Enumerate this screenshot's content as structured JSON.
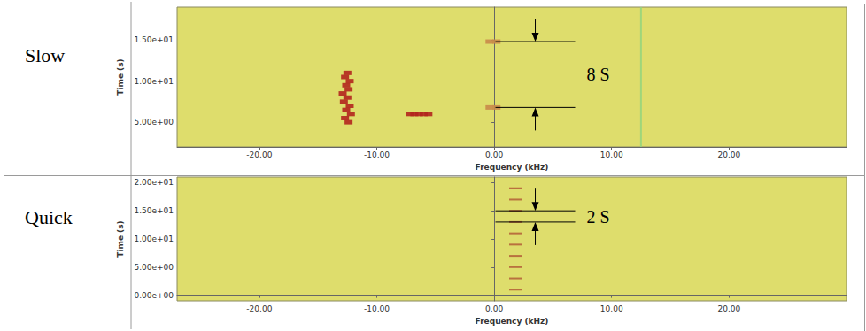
{
  "chart_data": [
    {
      "type": "scatter",
      "label": "Slow",
      "x_label": "Frequency (kHz)",
      "y_label": "Time (s)",
      "xlim": [
        -27,
        30
      ],
      "xticks": [
        {
          "value": -20,
          "label": "-20.00"
        },
        {
          "value": -10,
          "label": "-10.00"
        },
        {
          "value": 0,
          "label": "0.00"
        },
        {
          "value": 10,
          "label": "10.00"
        },
        {
          "value": 20,
          "label": "20.00"
        }
      ],
      "ylim": [
        2,
        19
      ],
      "yticks": [
        {
          "value": 5,
          "label": "5.00e+00"
        },
        {
          "value": 10,
          "label": "1.00e+01"
        },
        {
          "value": 15,
          "label": "1.50e+01"
        }
      ],
      "series": [
        {
          "color": "#b3261e",
          "marker": "rect",
          "x": [
            -12.4,
            -12.7,
            -12.2,
            -12.6,
            -12.3,
            -12.8,
            -12.5,
            -12.9,
            -12.4,
            -12.6,
            -12.3,
            -12.7,
            -12.5
          ],
          "y": [
            5.0,
            5.5,
            6.0,
            6.5,
            7.0,
            7.5,
            8.0,
            8.5,
            9.0,
            9.5,
            10.0,
            10.5,
            11.0
          ]
        },
        {
          "color": "#b3261e",
          "marker": "rect",
          "x": [
            -7.2,
            -6.8,
            -6.4,
            -6.0,
            -5.6
          ],
          "y": [
            6.0,
            6.0,
            6.0,
            6.0,
            6.0
          ]
        },
        {
          "color": "#c98a4a",
          "marker": "rect",
          "x": [
            -0.4,
            0.2,
            -0.4,
            0.2
          ],
          "y": [
            6.8,
            6.8,
            14.8,
            14.8
          ]
        },
        {
          "type": "line",
          "color": "#8fd47e",
          "x": [
            12.5,
            12.5
          ],
          "y": [
            2,
            19
          ]
        }
      ],
      "annotations": [
        {
          "text": "8 S",
          "x": 3.5,
          "y": [
            6.8,
            14.8
          ]
        }
      ]
    },
    {
      "type": "scatter",
      "label": "Quick",
      "x_label": "Frequency (kHz)",
      "y_label": "Time (s)",
      "xlim": [
        -27,
        30
      ],
      "xticks": [
        {
          "value": -20,
          "label": "-20.00"
        },
        {
          "value": -10,
          "label": "-10.00"
        },
        {
          "value": 0,
          "label": "0.00"
        },
        {
          "value": 10,
          "label": "10.00"
        },
        {
          "value": 20,
          "label": "20.00"
        }
      ],
      "ylim": [
        -1,
        21
      ],
      "yticks": [
        {
          "value": 0,
          "label": "0.00e+00"
        },
        {
          "value": 5,
          "label": "5.00e+00"
        },
        {
          "value": 10,
          "label": "1.00e+01"
        },
        {
          "value": 15,
          "label": "1.50e+01"
        },
        {
          "value": 20,
          "label": "2.00e+01"
        }
      ],
      "series": [
        {
          "color": "#b5653a",
          "marker": "rect",
          "x": [
            1.8,
            1.8,
            1.8,
            1.8,
            1.8,
            1.8,
            1.8,
            1.8,
            1.8,
            1.8
          ],
          "y": [
            1,
            3,
            5,
            7,
            9,
            11,
            13,
            15,
            17,
            19
          ]
        }
      ],
      "annotations": [
        {
          "text": "2 S",
          "x": 3.5,
          "y": [
            13,
            15
          ]
        }
      ]
    }
  ]
}
